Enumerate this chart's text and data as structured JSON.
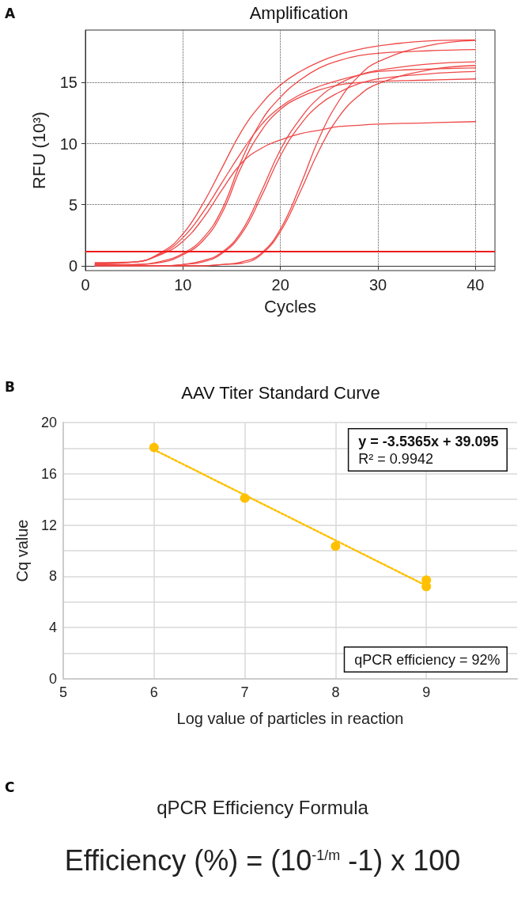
{
  "chart_data": [
    {
      "type": "line",
      "title": "Amplification",
      "xlabel": "Cycles",
      "ylabel": "RFU (10³)",
      "annotations": [
        "A"
      ],
      "marker": "none",
      "line_style": "solid",
      "grid": true,
      "xlim": [
        0,
        42
      ],
      "xticks": [
        0,
        10,
        20,
        30,
        40
      ],
      "ylim": [
        -0.4,
        19.3
      ],
      "yticks": [
        0,
        5,
        10,
        15
      ],
      "x": [
        1,
        5,
        8,
        10,
        12,
        14,
        16,
        18,
        20,
        22,
        24,
        26,
        28,
        30,
        35,
        40
      ],
      "series": [
        {
          "color": "#f04848",
          "values": [
            0.25,
            0.3,
            1.2,
            2.6,
            5.0,
            8.0,
            11.0,
            13.2,
            14.8,
            15.9,
            16.7,
            17.3,
            17.7,
            18.0,
            18.4,
            18.5
          ]
        },
        {
          "color": "#f04848",
          "values": [
            0.2,
            0.3,
            1.1,
            2.3,
            4.3,
            6.8,
            9.3,
            11.5,
            13.0,
            14.0,
            14.7,
            15.2,
            15.6,
            15.9,
            16.1,
            16.2
          ]
        },
        {
          "color": "#f04848",
          "values": [
            0.15,
            0.3,
            1.0,
            2.0,
            3.8,
            6.2,
            8.4,
            9.6,
            10.3,
            10.8,
            11.1,
            11.4,
            11.5,
            11.6,
            11.7,
            11.8
          ]
        },
        {
          "color": "#f04848",
          "values": [
            0.1,
            0.1,
            0.4,
            1.0,
            2.2,
            4.6,
            8.6,
            11.8,
            13.8,
            15.2,
            16.2,
            16.8,
            17.2,
            17.4,
            17.6,
            17.7
          ]
        },
        {
          "color": "#f04848",
          "values": [
            0.08,
            0.1,
            0.3,
            0.9,
            2.0,
            4.3,
            8.1,
            11.0,
            12.8,
            13.8,
            14.4,
            14.8,
            15.0,
            15.1,
            15.2,
            15.3
          ]
        },
        {
          "color": "#f04848",
          "values": [
            0.05,
            0.0,
            0.0,
            0.1,
            0.4,
            1.1,
            2.8,
            6.0,
            9.5,
            12.0,
            13.8,
            14.9,
            15.6,
            16.0,
            16.5,
            16.7
          ]
        },
        {
          "color": "#f04848",
          "values": [
            0.0,
            0.0,
            0.0,
            0.1,
            0.3,
            1.0,
            2.6,
            5.6,
            9.0,
            11.5,
            13.2,
            14.2,
            14.9,
            15.3,
            15.7,
            15.9
          ]
        },
        {
          "color": "#f04848",
          "values": [
            0.02,
            0.0,
            0.0,
            0.0,
            0.0,
            0.1,
            0.3,
            1.0,
            3.0,
            6.5,
            10.5,
            13.5,
            15.5,
            16.7,
            18.0,
            18.45
          ]
        },
        {
          "color": "#f04848",
          "values": [
            0.0,
            0.0,
            0.0,
            0.0,
            0.0,
            0.1,
            0.2,
            0.9,
            2.8,
            6.0,
            9.5,
            12.2,
            13.9,
            14.9,
            16.0,
            16.4
          ]
        }
      ],
      "ref_lines": [
        {
          "axis": "y",
          "value": 1.2,
          "color": "#ee1c1c",
          "line_style": "solid"
        }
      ]
    },
    {
      "type": "scatter",
      "title": "AAV Titer Standard Curve",
      "xlabel": "Log value of particles in reaction",
      "ylabel": "Cq value",
      "grid": true,
      "annotations": [
        "B",
        "y = -3.5365x + 39.095",
        "R² = 0.9942",
        "qPCR efficiency = 92%"
      ],
      "xlim": [
        5,
        10
      ],
      "xticks": [
        5,
        6,
        7,
        8,
        9
      ],
      "ylim": [
        0,
        20
      ],
      "yticks": [
        0,
        {
          "value": 2,
          "label": null
        },
        4,
        {
          "value": 6,
          "label": null
        },
        8,
        {
          "value": 10,
          "label": null
        },
        12,
        {
          "value": 14,
          "label": null
        },
        16,
        {
          "value": 18,
          "label": null
        },
        20
      ],
      "series": [
        {
          "type": "scatter",
          "marker": "circle",
          "color": "#ffc000",
          "x": [
            6,
            7,
            8,
            9,
            9
          ],
          "values": [
            18.05,
            14.1,
            10.35,
            7.7,
            7.2
          ]
        },
        {
          "type": "line",
          "marker": "none",
          "color": "#ffc000",
          "line_style": "dotted",
          "x": [
            6,
            9
          ],
          "values": [
            17.88,
            7.27
          ]
        }
      ]
    },
    {
      "type": "other",
      "title": "qPCR Efficiency Formula",
      "annotations": [
        "C",
        "Efficiency (%) = (10$^{-1/m}$ -1) x 100"
      ]
    }
  ]
}
